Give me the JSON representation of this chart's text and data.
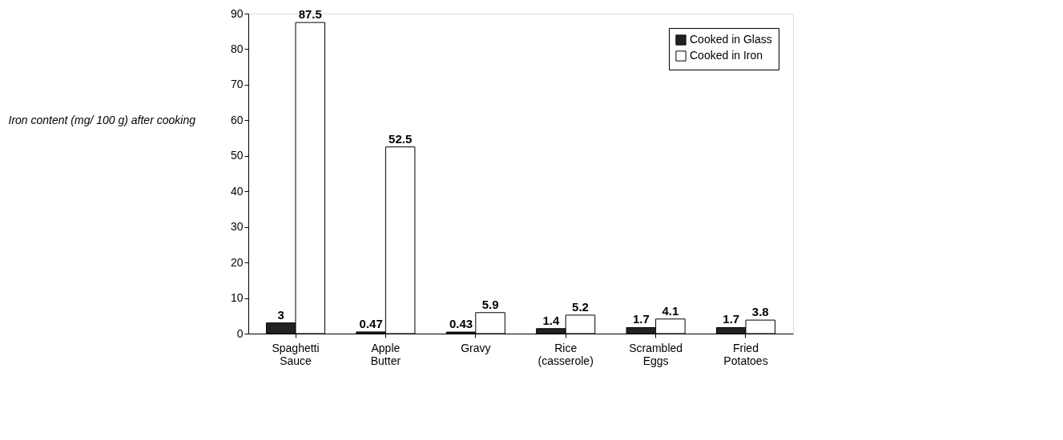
{
  "chart_data": {
    "type": "bar",
    "ylabel": "Iron content  (mg/ 100 g) after cooking",
    "categories": [
      "Spaghetti Sauce",
      "Apple Butter",
      "Gravy",
      "Rice (casserole)",
      "Scrambled Eggs",
      "Fried Potatoes"
    ],
    "series": [
      {
        "name": "Cooked in Glass",
        "color": "#222222",
        "values": [
          3,
          0.47,
          0.43,
          1.4,
          1.7,
          1.7
        ]
      },
      {
        "name": "Cooked in Iron",
        "color": "#ffffff",
        "values": [
          87.5,
          52.5,
          5.9,
          5.2,
          4.1,
          3.8
        ]
      }
    ],
    "ylim": [
      0,
      90
    ],
    "yticks": [
      0,
      10,
      20,
      30,
      40,
      50,
      60,
      70,
      80,
      90
    ],
    "data_labels": true,
    "grid": false,
    "legend": "top right"
  }
}
